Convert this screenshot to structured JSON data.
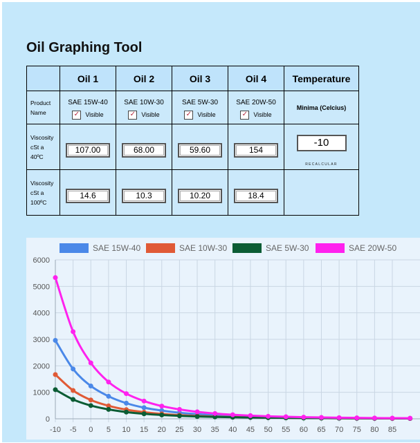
{
  "title": "Oil Graphing Tool",
  "table": {
    "headers": [
      "Oil 1",
      "Oil 2",
      "Oil 3",
      "Oil 4",
      "Temperature"
    ],
    "product_label": [
      "Product",
      "Name"
    ],
    "visc40_label": [
      "Viscosity",
      "cSt a",
      "40ºC"
    ],
    "visc100_label": [
      "Viscosity",
      "cSt a",
      "100ºC"
    ],
    "products": [
      "SAE 15W-40",
      "SAE 10W-30",
      "SAE 5W-30",
      "SAE 20W-50"
    ],
    "visible_label": "Visible",
    "visible_checked": [
      true,
      true,
      true,
      true
    ],
    "visc40": [
      "107.00",
      "68.00",
      "59.60",
      "154"
    ],
    "visc100": [
      "14.6",
      "10.3",
      "10.20",
      "18.4"
    ],
    "temp_header": "Minima (Celcius)",
    "temp_value": "-10",
    "recalc_label": "RECALCULAR"
  },
  "chart_data": {
    "type": "line",
    "x": [
      -10,
      -5,
      0,
      5,
      10,
      15,
      20,
      25,
      30,
      35,
      40,
      45,
      50,
      55,
      60,
      65,
      70,
      75,
      80,
      85,
      90
    ],
    "xticks": [
      "-10",
      "-5",
      "0",
      "5",
      "10",
      "15",
      "20",
      "25",
      "30",
      "35",
      "40",
      "45",
      "50",
      "55",
      "60",
      "65",
      "70",
      "75",
      "80",
      "85"
    ],
    "ylim": [
      0,
      6000
    ],
    "yticks": [
      "0",
      "1000",
      "2000",
      "3000",
      "4000",
      "5000",
      "6000"
    ],
    "grid": true,
    "legend_position": "top",
    "series": [
      {
        "name": "SAE 15W-40",
        "color": "#4a88e8",
        "values": [
          2960,
          1880,
          1240,
          850,
          590,
          420,
          310,
          230,
          175,
          135,
          107,
          86,
          70,
          57,
          47,
          39,
          33,
          28,
          24,
          21,
          18
        ]
      },
      {
        "name": "SAE 10W-30",
        "color": "#e05a36",
        "values": [
          1670,
          1070,
          710,
          490,
          345,
          250,
          185,
          140,
          108,
          84,
          68,
          55,
          45,
          37,
          31,
          26,
          22,
          19,
          16,
          14,
          12
        ]
      },
      {
        "name": "SAE 5W-30",
        "color": "#0b5c34",
        "values": [
          1100,
          730,
          500,
          355,
          255,
          190,
          145,
          112,
          88,
          71,
          59.6,
          50,
          42,
          36,
          30,
          26,
          22,
          19,
          17,
          15,
          13
        ]
      },
      {
        "name": "SAE 20W-50",
        "color": "#ff22ee",
        "values": [
          5330,
          3290,
          2110,
          1390,
          950,
          670,
          480,
          355,
          265,
          200,
          154,
          120,
          96,
          77,
          63,
          52,
          43,
          36,
          30,
          26,
          22
        ]
      }
    ]
  }
}
